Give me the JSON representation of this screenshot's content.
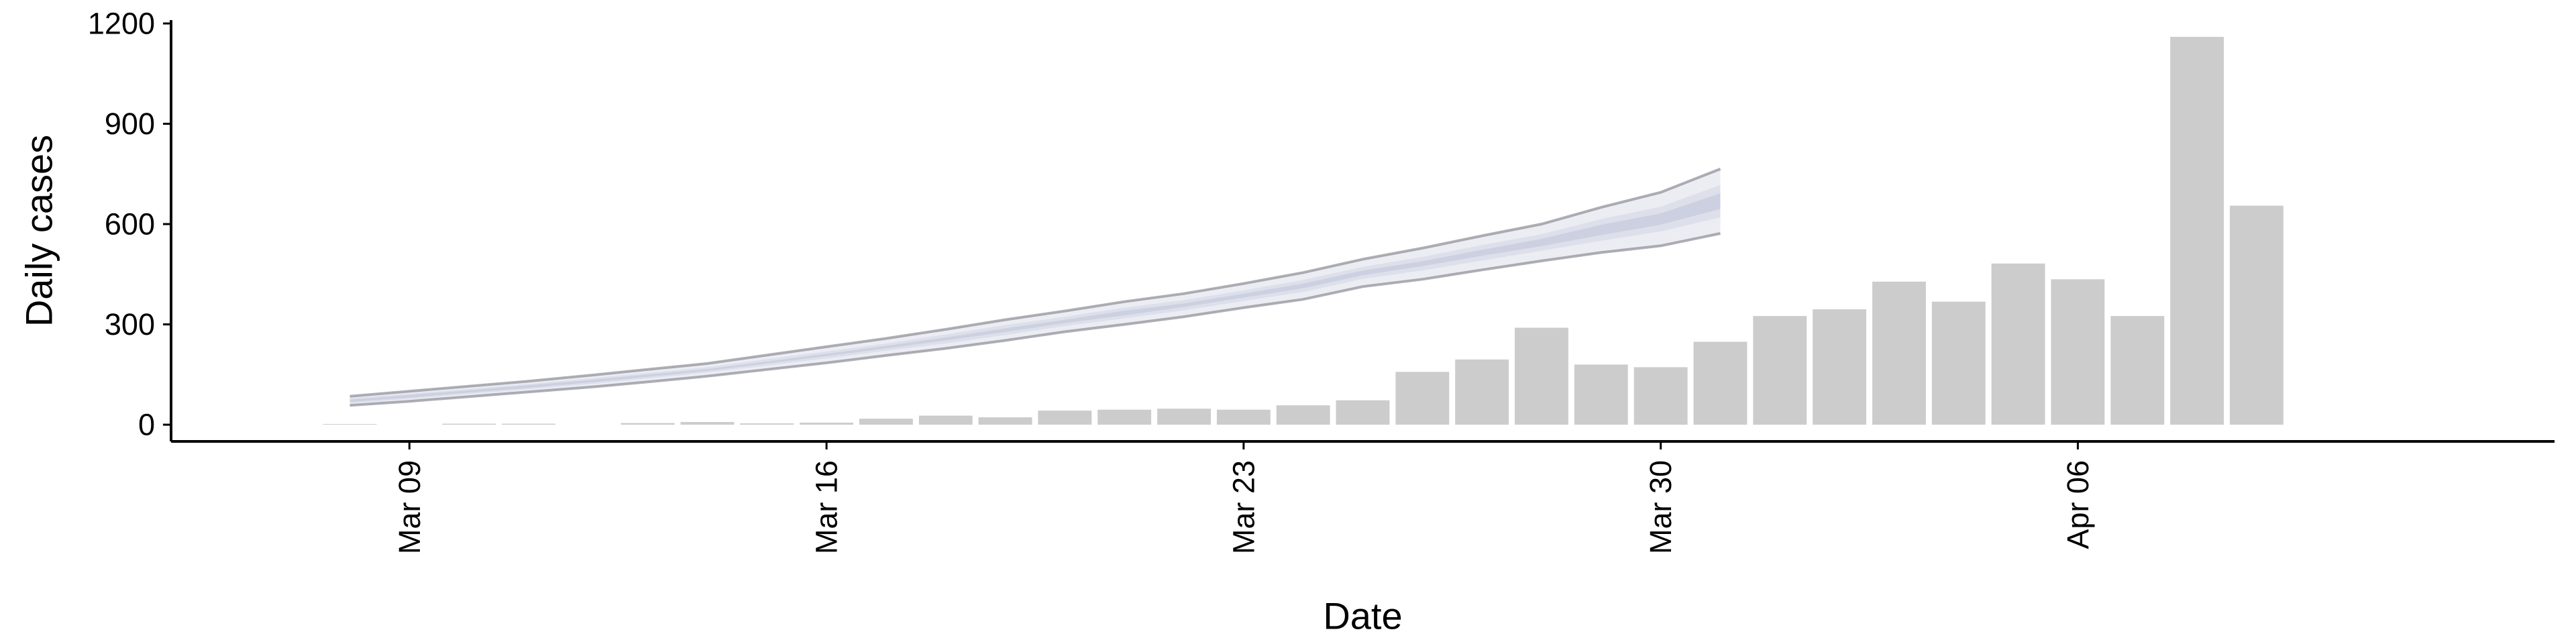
{
  "chart_data": {
    "type": "bar",
    "title": "",
    "xlabel": "Date",
    "ylabel": "Daily cases",
    "ylim": [
      -50,
      1210
    ],
    "yticks": [
      0,
      300,
      600,
      900,
      1200
    ],
    "ytick_labels": [
      "0",
      "300",
      "600",
      "900",
      "1200"
    ],
    "xlim": [
      "2020-03-05",
      "2020-04-14"
    ],
    "xticks": [
      "2020-03-09",
      "2020-03-16",
      "2020-03-23",
      "2020-03-30",
      "2020-04-06"
    ],
    "xtick_labels": [
      "Mar 09",
      "Mar 16",
      "Mar 23",
      "Mar 30",
      "Apr 06"
    ],
    "grid": false,
    "legend": "none",
    "colors": {
      "bars": "#cccccc",
      "band_outer": "#ecedf3",
      "band_middle": "#dde0eb",
      "band_inner": "#cdd0e0",
      "band_outline": "#8c8c94"
    },
    "bars": {
      "dates": [
        "2020-03-08",
        "2020-03-09",
        "2020-03-10",
        "2020-03-11",
        "2020-03-12",
        "2020-03-13",
        "2020-03-14",
        "2020-03-15",
        "2020-03-16",
        "2020-03-17",
        "2020-03-18",
        "2020-03-19",
        "2020-03-20",
        "2020-03-21",
        "2020-03-22",
        "2020-03-23",
        "2020-03-24",
        "2020-03-25",
        "2020-03-26",
        "2020-03-27",
        "2020-03-28",
        "2020-03-29",
        "2020-03-30",
        "2020-03-31",
        "2020-04-01",
        "2020-04-02",
        "2020-04-03",
        "2020-04-04",
        "2020-04-05",
        "2020-04-06",
        "2020-04-07",
        "2020-04-08",
        "2020-04-09"
      ],
      "values": [
        2,
        0,
        3,
        3,
        0,
        5,
        8,
        4,
        6,
        18,
        27,
        22,
        42,
        45,
        48,
        45,
        58,
        73,
        158,
        195,
        290,
        180,
        172,
        248,
        325,
        345,
        428,
        368,
        482,
        435,
        325,
        1160,
        655
      ]
    },
    "forecast_band": {
      "dates": [
        "2020-03-08",
        "2020-03-09",
        "2020-03-10",
        "2020-03-11",
        "2020-03-12",
        "2020-03-13",
        "2020-03-14",
        "2020-03-15",
        "2020-03-16",
        "2020-03-17",
        "2020-03-18",
        "2020-03-19",
        "2020-03-20",
        "2020-03-21",
        "2020-03-22",
        "2020-03-23",
        "2020-03-24",
        "2020-03-25",
        "2020-03-26",
        "2020-03-27",
        "2020-03-28",
        "2020-03-29",
        "2020-03-30",
        "2020-03-31"
      ],
      "lower": [
        58,
        70,
        84,
        98,
        112,
        128,
        145,
        165,
        185,
        207,
        228,
        252,
        278,
        300,
        323,
        350,
        375,
        413,
        435,
        463,
        490,
        515,
        535,
        572
      ],
      "upper": [
        85,
        100,
        115,
        130,
        147,
        165,
        183,
        208,
        233,
        258,
        285,
        314,
        340,
        368,
        392,
        422,
        455,
        495,
        528,
        565,
        600,
        650,
        695,
        765
      ],
      "mid_lower": [
        64,
        77,
        92,
        106,
        121,
        138,
        156,
        177,
        198,
        221,
        243,
        268,
        295,
        318,
        342,
        370,
        397,
        436,
        461,
        491,
        520,
        550,
        578,
        620
      ],
      "mid_upper": [
        79,
        93,
        107,
        122,
        138,
        155,
        172,
        196,
        219,
        243,
        270,
        298,
        323,
        350,
        373,
        402,
        433,
        472,
        502,
        537,
        570,
        615,
        652,
        717
      ],
      "inner_lower": [
        68,
        81,
        96,
        110,
        126,
        143,
        161,
        183,
        205,
        228,
        252,
        277,
        304,
        327,
        352,
        380,
        408,
        447,
        474,
        505,
        534,
        567,
        598,
        645
      ],
      "inner_upper": [
        75,
        89,
        103,
        118,
        133,
        150,
        166,
        189,
        212,
        236,
        261,
        288,
        314,
        341,
        363,
        392,
        422,
        461,
        489,
        523,
        556,
        598,
        632,
        692
      ]
    }
  }
}
